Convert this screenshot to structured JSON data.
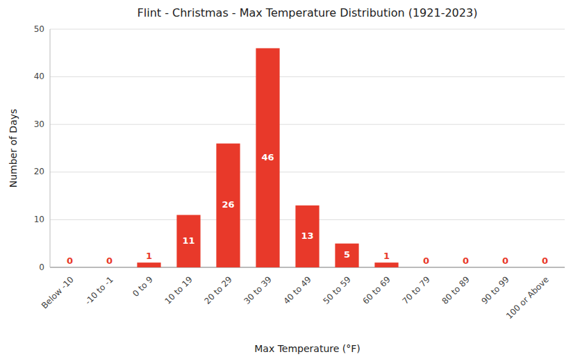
{
  "chart_data": {
    "type": "bar",
    "title": "Flint - Christmas - Max Temperature Distribution (1921-2023)",
    "xlabel": "Max Temperature (°F)",
    "ylabel": "Number of Days",
    "categories": [
      "Below -10",
      "-10 to -1",
      "0 to 9",
      "10 to 19",
      "20 to 29",
      "30 to 39",
      "40 to 49",
      "50 to 59",
      "60 to 69",
      "70 to 79",
      "80 to 89",
      "90 to 99",
      "100 or Above"
    ],
    "values": [
      0,
      0,
      1,
      11,
      26,
      46,
      13,
      5,
      1,
      0,
      0,
      0,
      0
    ],
    "color": "#e8392a",
    "ylim": [
      0,
      50
    ],
    "yticks": [
      0,
      10,
      20,
      30,
      40,
      50
    ],
    "grid": true,
    "data_labels": true
  }
}
